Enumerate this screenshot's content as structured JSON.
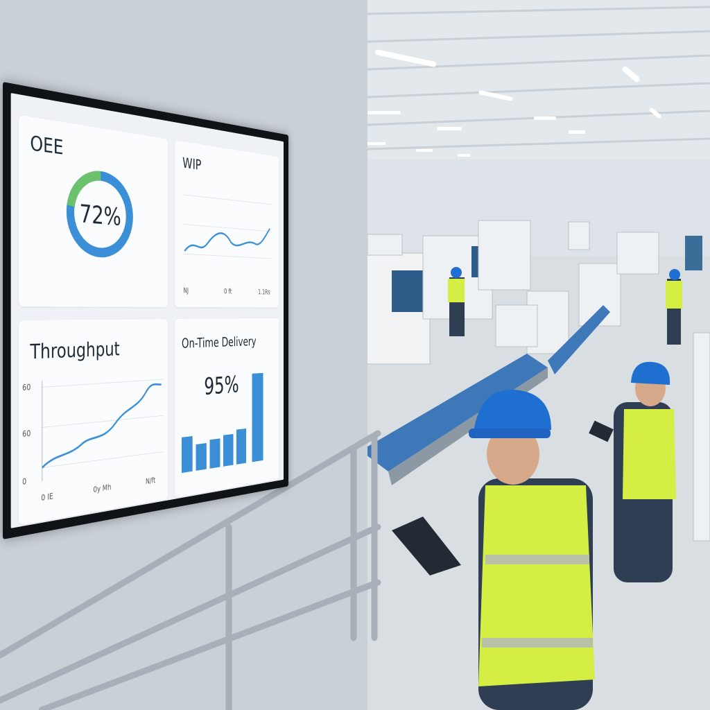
{
  "dashboard": {
    "oee": {
      "title": "OEE",
      "value": "72%"
    },
    "wip": {
      "title": "WIP",
      "x_labels": [
        "NJ",
        "0 ft",
        "1.1Rs"
      ]
    },
    "throughput": {
      "title": "Throughput",
      "y_labels": [
        "60",
        "60",
        "0"
      ],
      "x_labels": [
        "0 IE",
        "0y Mh",
        "N/ft"
      ]
    },
    "on_time_delivery": {
      "title": "On-Time Delivery",
      "value": "95%"
    }
  }
}
